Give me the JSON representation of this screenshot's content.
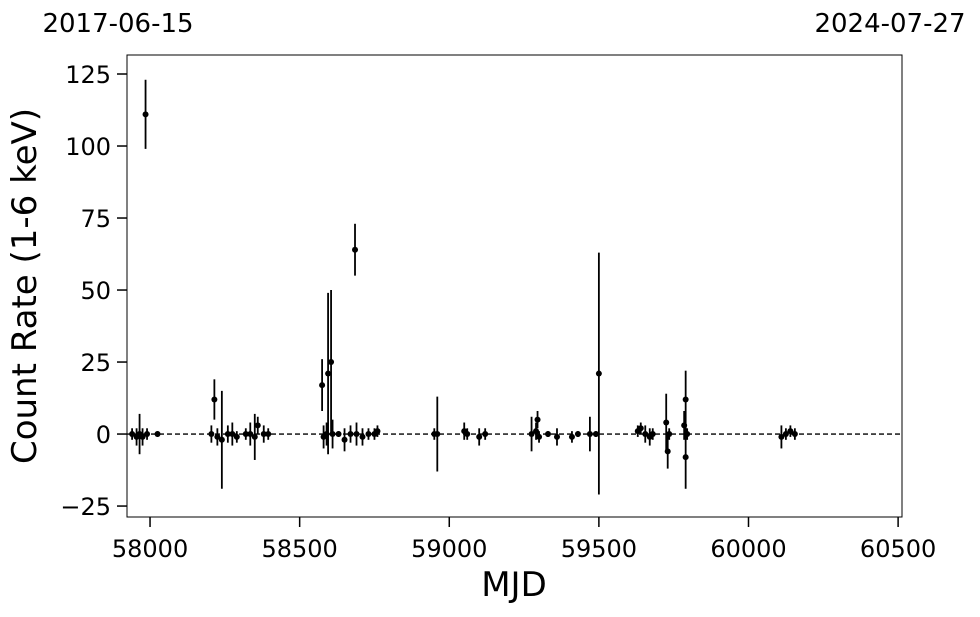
{
  "chart_data": {
    "type": "errorbar",
    "xlabel": "MJD",
    "ylabel": "Count Rate (1-6 keV)",
    "date_labels": [
      "2017-06-15",
      "2024-07-27"
    ],
    "xlim": [
      57923,
      60513
    ],
    "ylim": [
      -28.8,
      131.6
    ],
    "xticks": [
      58000,
      58500,
      59000,
      59500,
      60000,
      60500
    ],
    "yticks": [
      {
        "value": -25,
        "label": "−25"
      },
      0,
      25,
      50,
      75,
      100,
      125
    ],
    "hline": 0,
    "series": [
      {
        "color": "#000000",
        "x": [
          57940,
          57955,
          57965,
          57975,
          57985,
          57990,
          58025,
          58205,
          58215,
          58225,
          58240,
          58260,
          58275,
          58290,
          58320,
          58335,
          58350,
          58360,
          58380,
          58395,
          58575,
          58580,
          58590,
          58595,
          58605,
          58610,
          58630,
          58650,
          58670,
          58685,
          58690,
          58710,
          58730,
          58750,
          58760,
          58950,
          58960,
          59050,
          59060,
          59100,
          59120,
          59275,
          59290,
          59295,
          59300,
          59330,
          59360,
          59410,
          59430,
          59470,
          59490,
          59500,
          59630,
          59640,
          59655,
          59670,
          59680,
          59725,
          59730,
          59735,
          59785,
          59790,
          59790,
          59795,
          60110,
          60125,
          60140,
          60155
        ],
        "values": [
          0,
          -1,
          0,
          -1,
          111,
          0,
          0,
          0,
          12,
          -1,
          -2,
          0,
          0,
          -1,
          0,
          0,
          -1,
          3,
          0,
          0,
          17,
          -1,
          0,
          21,
          25,
          0,
          0,
          -2,
          0,
          64,
          0,
          -1,
          0,
          0,
          1,
          0,
          0,
          1,
          0,
          -1,
          0,
          0,
          1,
          5,
          -1,
          0,
          -1,
          -1,
          0,
          0,
          0,
          21,
          1,
          2,
          0,
          -1,
          0,
          4,
          -6,
          0,
          3,
          12,
          -8,
          0,
          -1,
          0,
          1,
          0
        ],
        "errors": [
          2,
          3,
          7,
          3,
          12,
          2,
          1,
          3,
          7,
          3,
          17,
          3,
          4,
          2,
          2,
          4,
          8,
          3,
          3,
          2,
          9,
          4,
          4,
          28,
          25,
          5,
          1,
          4,
          3,
          9,
          4,
          3,
          2,
          2,
          2,
          2,
          13,
          3,
          2,
          3,
          2,
          6,
          3,
          3,
          2,
          1,
          3,
          2,
          1,
          6,
          1,
          42,
          2,
          2,
          3,
          3,
          2,
          10,
          6,
          2,
          5,
          10,
          11,
          2,
          4,
          2,
          2,
          2
        ]
      }
    ]
  }
}
